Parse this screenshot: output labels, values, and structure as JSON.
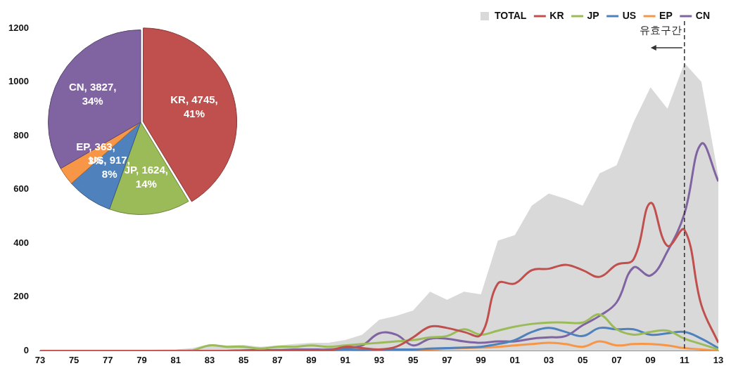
{
  "chart_data": [
    {
      "type": "line",
      "categories": [
        "73",
        null,
        "75",
        null,
        "77",
        null,
        "79",
        null,
        "81",
        null,
        "83",
        null,
        "85",
        null,
        "87",
        null,
        "89",
        null,
        "91",
        null,
        "93",
        null,
        "95",
        null,
        "97",
        null,
        "99",
        null,
        "01",
        null,
        "03",
        null,
        "05",
        null,
        "07",
        null,
        "09",
        null,
        "11",
        null,
        "13"
      ],
      "series": [
        {
          "name": "TOTAL",
          "type": "area",
          "color": "#d9d9d9",
          "values": [
            0,
            0,
            0,
            2,
            2,
            3,
            3,
            4,
            5,
            10,
            25,
            20,
            22,
            15,
            20,
            25,
            30,
            30,
            40,
            60,
            115,
            130,
            150,
            220,
            190,
            220,
            210,
            410,
            430,
            540,
            585,
            565,
            540,
            660,
            690,
            850,
            980,
            900,
            1070,
            1000,
            650
          ]
        },
        {
          "name": "KR",
          "color": "#c0504d",
          "values": [
            0,
            0,
            0,
            0,
            0,
            0,
            0,
            0,
            0,
            0,
            0,
            0,
            0,
            0,
            0,
            0,
            0,
            0,
            15,
            10,
            5,
            15,
            50,
            90,
            85,
            70,
            60,
            250,
            250,
            300,
            305,
            320,
            300,
            275,
            320,
            340,
            550,
            390,
            450,
            170,
            30
          ]
        },
        {
          "name": "JP",
          "color": "#9bbb59",
          "values": [
            0,
            0,
            0,
            0,
            0,
            0,
            0,
            0,
            0,
            2,
            20,
            15,
            15,
            8,
            15,
            15,
            20,
            15,
            20,
            25,
            30,
            35,
            40,
            50,
            55,
            80,
            60,
            75,
            90,
            100,
            105,
            105,
            105,
            135,
            80,
            60,
            70,
            75,
            45,
            25,
            5
          ]
        },
        {
          "name": "US",
          "color": "#4f81bd",
          "values": [
            0,
            0,
            0,
            0,
            0,
            0,
            0,
            0,
            0,
            0,
            0,
            0,
            0,
            0,
            0,
            0,
            0,
            0,
            5,
            3,
            5,
            5,
            5,
            8,
            10,
            12,
            15,
            25,
            40,
            70,
            85,
            70,
            55,
            85,
            80,
            80,
            60,
            65,
            70,
            45,
            10
          ]
        },
        {
          "name": "EP",
          "color": "#f79646",
          "values": [
            0,
            0,
            0,
            0,
            0,
            0,
            0,
            0,
            0,
            0,
            0,
            0,
            0,
            0,
            0,
            0,
            0,
            0,
            0,
            0,
            0,
            0,
            3,
            5,
            8,
            10,
            12,
            15,
            20,
            25,
            30,
            25,
            15,
            35,
            20,
            25,
            25,
            20,
            10,
            5,
            0
          ]
        },
        {
          "name": "CN",
          "color": "#8064a2",
          "values": [
            0,
            0,
            0,
            0,
            0,
            0,
            0,
            0,
            0,
            0,
            0,
            0,
            2,
            2,
            3,
            5,
            5,
            5,
            10,
            20,
            65,
            60,
            20,
            45,
            45,
            35,
            30,
            35,
            35,
            45,
            50,
            55,
            95,
            130,
            180,
            310,
            280,
            370,
            510,
            770,
            630
          ]
        }
      ],
      "ylim": [
        0,
        1200
      ],
      "yticks": [
        0,
        200,
        400,
        600,
        800,
        1000,
        1200
      ],
      "grid": false,
      "legend": "top-right",
      "annotations": [
        {
          "x": "11",
          "text": "유효구간",
          "line_style": "dashed"
        }
      ]
    },
    {
      "type": "pie",
      "categories": [
        "KR",
        "JP",
        "US",
        "EP",
        "CN"
      ],
      "values": [
        4745,
        1624,
        917,
        363,
        3827
      ],
      "colors": [
        "#c0504d",
        "#9bbb59",
        "#4f81bd",
        "#f79646",
        "#8064a2"
      ],
      "value_labels": [
        "KR, 4745, 41%",
        "JP, 1624, 14%",
        "US, 917, 8%",
        "EP, 363, 3%",
        "CN, 3827, 34%"
      ],
      "data_labels": true
    }
  ]
}
